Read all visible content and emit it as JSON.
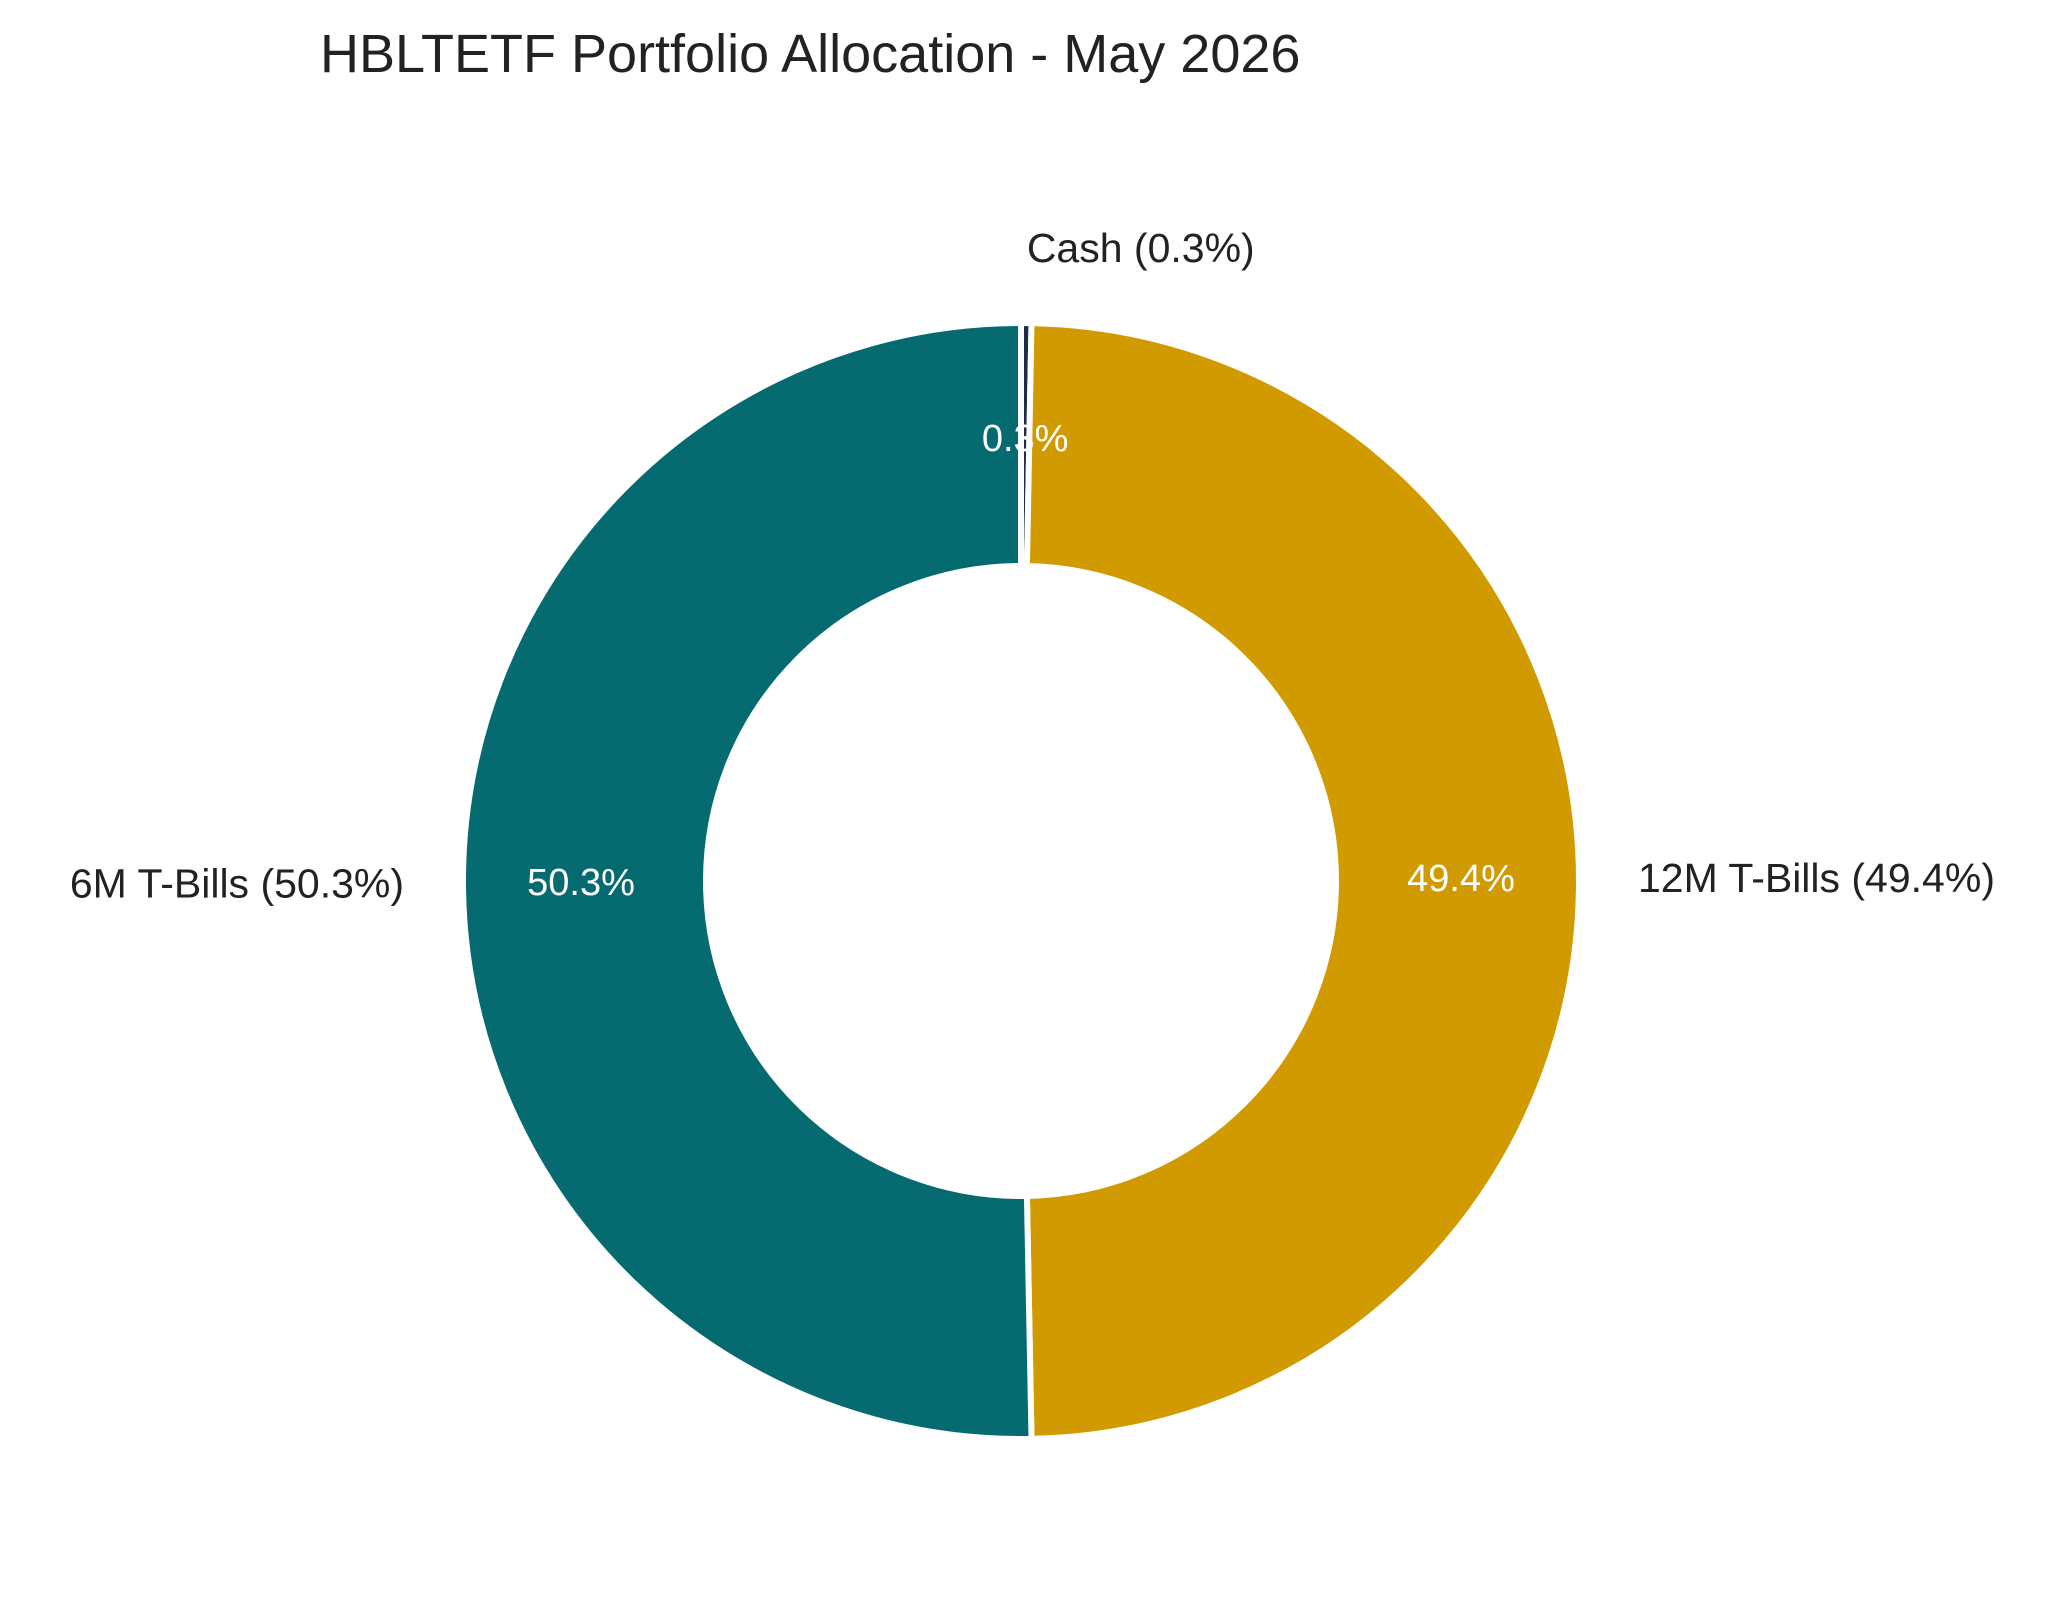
{
  "chart_data": {
    "type": "pie",
    "title": "HBLTETF Portfolio Allocation - May 2026",
    "donut": true,
    "start": "top",
    "direction": "clockwise",
    "slices": [
      {
        "label": "Cash",
        "value": 0.3,
        "outer_label": "Cash (0.3%)",
        "pct_label": "0.3%",
        "color": "#1f2a44"
      },
      {
        "label": "12M T-Bills",
        "value": 49.4,
        "outer_label": "12M T-Bills (49.4%)",
        "pct_label": "49.4%",
        "color": "#d19a00"
      },
      {
        "label": "6M T-Bills",
        "value": 50.3,
        "outer_label": "6M T-Bills (50.3%)",
        "pct_label": "50.3%",
        "color": "#056b70"
      }
    ]
  }
}
